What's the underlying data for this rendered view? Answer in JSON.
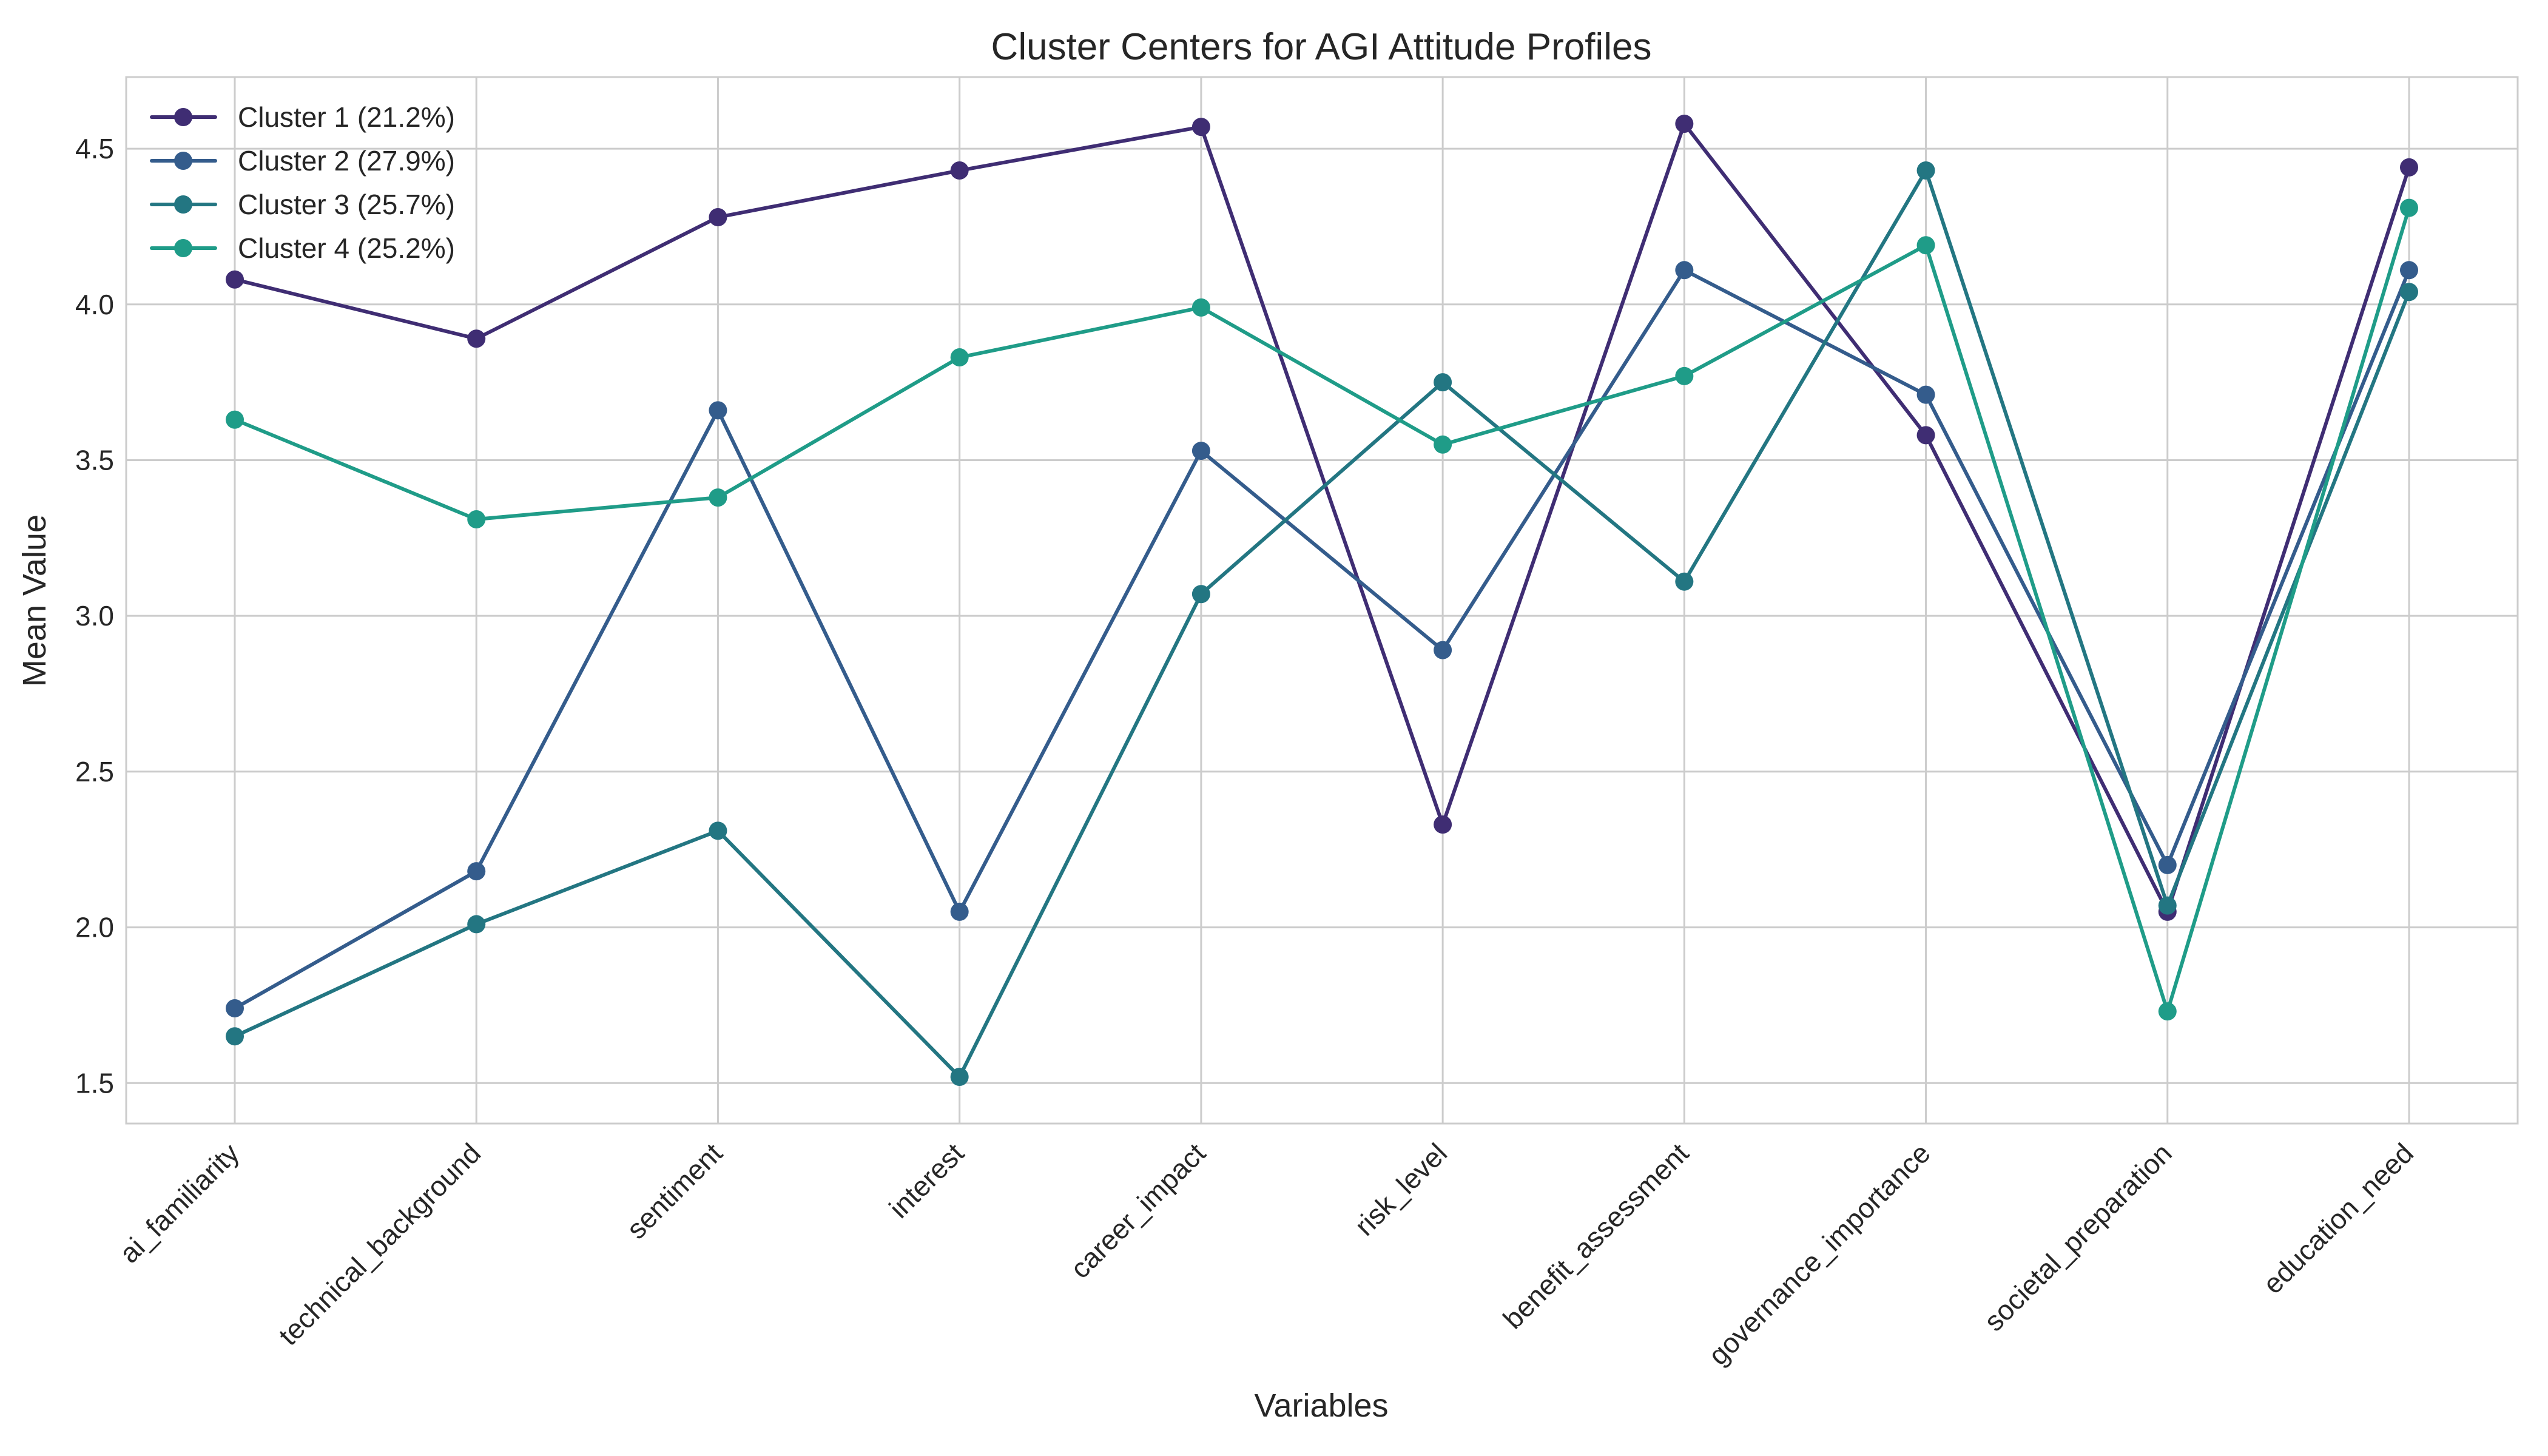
{
  "chart_data": {
    "type": "line",
    "title": "Cluster Centers for AGI Attitude Profiles",
    "xlabel": "Variables",
    "ylabel": "Mean Value",
    "categories": [
      "ai_familiarity",
      "technical_background",
      "sentiment",
      "interest",
      "career_impact",
      "risk_level",
      "benefit_assessment",
      "governance_importance",
      "societal_preparation",
      "education_need"
    ],
    "yticks": [
      "1.5",
      "2.0",
      "2.5",
      "3.0",
      "3.5",
      "4.0",
      "4.5"
    ],
    "ylim": [
      1.37,
      4.73
    ],
    "grid": true,
    "legend_position": "top-left",
    "series": [
      {
        "name": "Cluster 1 (21.2%)",
        "color": "#3f2d73",
        "values": [
          4.08,
          3.89,
          4.28,
          4.43,
          4.57,
          2.33,
          4.58,
          3.58,
          2.05,
          4.44
        ]
      },
      {
        "name": "Cluster 2 (27.9%)",
        "color": "#345c8c",
        "values": [
          1.74,
          2.18,
          3.66,
          2.05,
          3.53,
          2.89,
          4.11,
          3.71,
          2.2,
          4.11
        ]
      },
      {
        "name": "Cluster 3 (25.7%)",
        "color": "#237682",
        "values": [
          1.65,
          2.01,
          2.31,
          1.52,
          3.07,
          3.75,
          3.11,
          4.43,
          2.07,
          4.04
        ]
      },
      {
        "name": "Cluster 4 (25.2%)",
        "color": "#1f9c88",
        "values": [
          3.63,
          3.31,
          3.38,
          3.83,
          3.99,
          3.55,
          3.77,
          4.19,
          1.73,
          4.31
        ]
      }
    ]
  }
}
